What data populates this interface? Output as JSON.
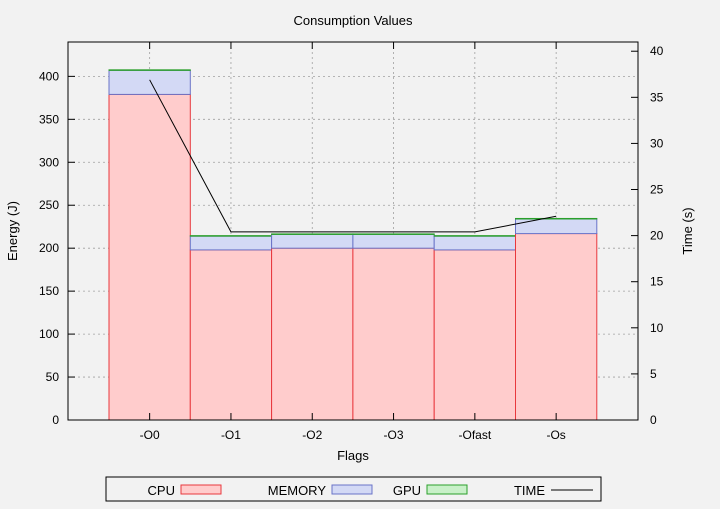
{
  "chart_data": {
    "type": "bar",
    "stacked": true,
    "title": "Consumption Values",
    "xlabel": "Flags",
    "ylabel": "Energy (J)",
    "y2label": "Time (s)",
    "ylim": [
      0,
      440
    ],
    "y2lim": [
      0,
      41
    ],
    "yticks": [
      0,
      50,
      100,
      150,
      200,
      250,
      300,
      350,
      400
    ],
    "y2ticks": [
      0,
      5,
      10,
      15,
      20,
      25,
      30,
      35,
      40
    ],
    "grid": true,
    "legend_position": "bottom",
    "categories": [
      "-O0",
      "-O1",
      "-O2",
      "-O3",
      "-Ofast",
      "-Os"
    ],
    "series": [
      {
        "name": "CPU",
        "kind": "bar",
        "axis": "left",
        "color": "#ffcccc",
        "edge": "#e8383d",
        "values": [
          379,
          198,
          200,
          200,
          198,
          217
        ]
      },
      {
        "name": "MEMORY",
        "kind": "bar",
        "axis": "left",
        "color": "#d3d9f5",
        "edge": "#6a74c8",
        "values": [
          28,
          16,
          16,
          16,
          16,
          17
        ]
      },
      {
        "name": "GPU",
        "kind": "bar",
        "axis": "left",
        "color": "#c8f0c8",
        "edge": "#2ba02b",
        "values": [
          0.6,
          0.6,
          0.6,
          0.6,
          0.6,
          0.6
        ]
      },
      {
        "name": "TIME",
        "kind": "line",
        "axis": "right",
        "color": "#000000",
        "values": [
          36.9,
          20.4,
          20.4,
          20.4,
          20.4,
          22.1
        ]
      }
    ]
  }
}
